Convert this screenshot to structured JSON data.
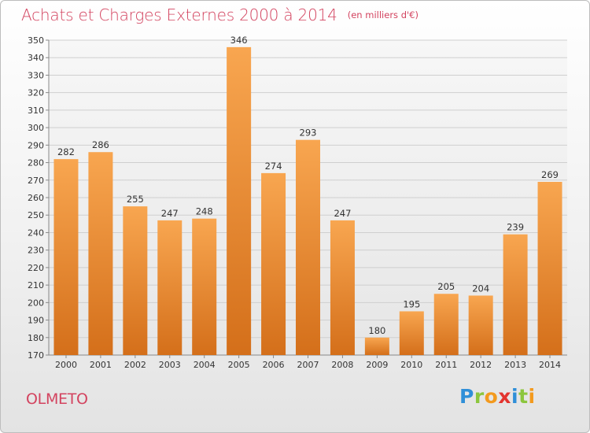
{
  "title": "Achats et Charges Externes 2000 à 2014",
  "subtitle": "(en milliers d'€)",
  "commune": "OLMETO",
  "logo": {
    "text": "Proxiti",
    "letters": [
      {
        "ch": "P",
        "color": "#2f8fd8"
      },
      {
        "ch": "r",
        "color": "#8cc63e"
      },
      {
        "ch": "o",
        "color": "#f39a1e"
      },
      {
        "ch": "x",
        "color": "#e3342f"
      },
      {
        "ch": "i",
        "color": "#2f8fd8"
      },
      {
        "ch": "t",
        "color": "#8cc63e"
      },
      {
        "ch": "i",
        "color": "#f39a1e"
      }
    ]
  },
  "colors": {
    "bar_top": "#f8a650",
    "bar_bottom": "#d46f1a",
    "title": "#d3435f"
  },
  "chart_data": {
    "type": "bar",
    "categories": [
      "2000",
      "2001",
      "2002",
      "2003",
      "2004",
      "2005",
      "2006",
      "2007",
      "2008",
      "2009",
      "2010",
      "2011",
      "2012",
      "2013",
      "2014"
    ],
    "values": [
      282,
      286,
      255,
      247,
      248,
      346,
      274,
      293,
      247,
      180,
      195,
      205,
      204,
      239,
      269
    ],
    "ylim": [
      170,
      350
    ],
    "yticks": [
      170,
      180,
      190,
      200,
      210,
      220,
      230,
      240,
      250,
      260,
      270,
      280,
      290,
      300,
      310,
      320,
      330,
      340,
      350
    ],
    "grid": true,
    "data_labels": true,
    "xlabel": "",
    "ylabel": ""
  }
}
